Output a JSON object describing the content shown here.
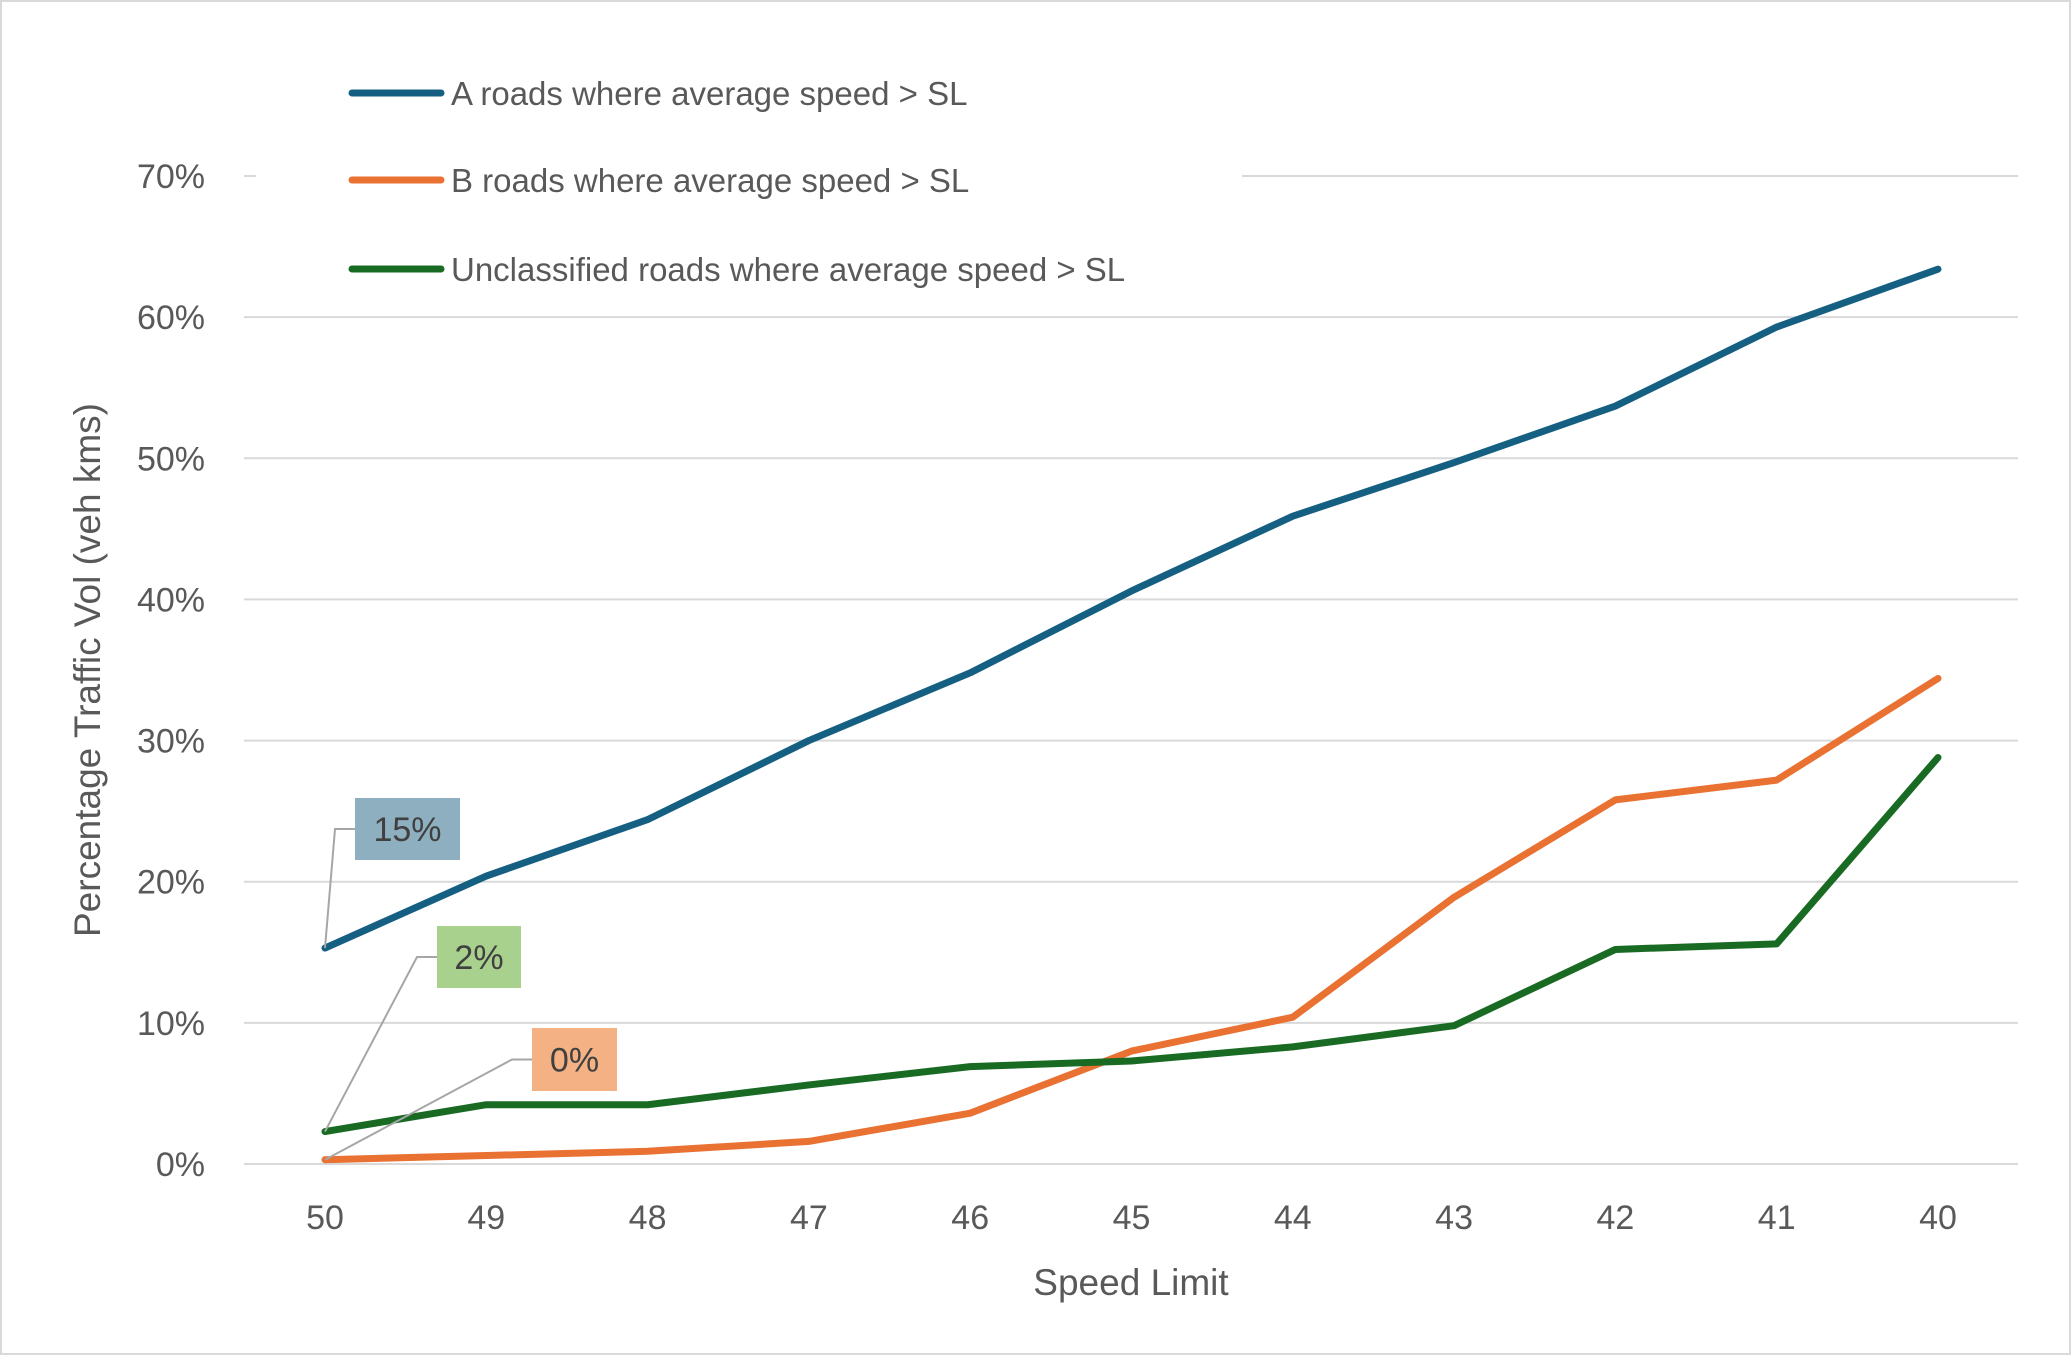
{
  "chart_data": {
    "type": "line",
    "title": "",
    "xlabel": "Speed Limit",
    "ylabel": "Percentage Traffic Vol (veh kms)",
    "categories": [
      "50",
      "49",
      "48",
      "47",
      "46",
      "45",
      "44",
      "43",
      "42",
      "41",
      "40"
    ],
    "ylim": [
      0,
      70
    ],
    "yticks": [
      "0%",
      "10%",
      "20%",
      "30%",
      "40%",
      "50%",
      "60%",
      "70%"
    ],
    "grid": true,
    "legend_position": "top-left",
    "series": [
      {
        "name": "A roads where average speed > SL",
        "color": "#156082",
        "values": [
          15.3,
          20.4,
          24.4,
          30.0,
          34.8,
          40.6,
          45.9,
          49.7,
          53.7,
          59.3,
          63.4
        ]
      },
      {
        "name": "B roads where average speed > SL",
        "color": "#e97132",
        "values": [
          0.3,
          0.6,
          0.9,
          1.6,
          3.6,
          8.0,
          10.4,
          18.9,
          25.8,
          27.2,
          34.4
        ]
      },
      {
        "name": "Unclassified roads where average speed > SL",
        "color": "#196b24",
        "values": [
          2.3,
          4.2,
          4.2,
          5.6,
          6.9,
          7.3,
          8.3,
          9.8,
          15.2,
          15.6,
          28.8
        ]
      }
    ],
    "annotations": [
      {
        "series": 0,
        "category": "50",
        "text": "15%",
        "color": "#8eafc0"
      },
      {
        "series": 2,
        "category": "50",
        "text": "2%",
        "color": "#a9d18e"
      },
      {
        "series": 1,
        "category": "50",
        "text": "0%",
        "color": "#f4b183"
      }
    ]
  }
}
